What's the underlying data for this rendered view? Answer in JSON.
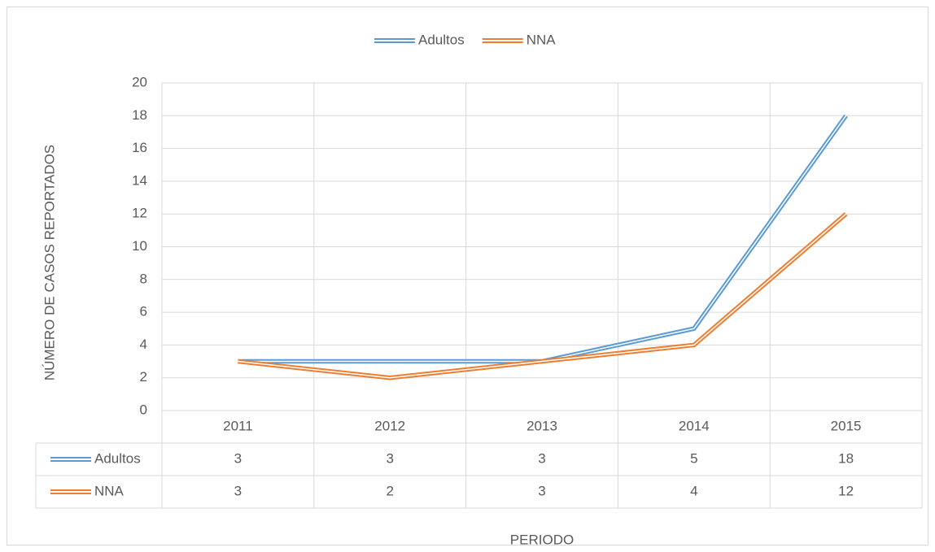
{
  "chart_data": {
    "type": "line",
    "categories": [
      "2011",
      "2012",
      "2013",
      "2014",
      "2015"
    ],
    "series": [
      {
        "name": "Adultos",
        "color": "#5b9bd5",
        "values": [
          3,
          3,
          3,
          5,
          18
        ]
      },
      {
        "name": "NNA",
        "color": "#ed7d31",
        "values": [
          3,
          2,
          3,
          4,
          12
        ]
      }
    ],
    "ylabel": "NÚMERO DE CASOS REPORTADOS",
    "xlabel": "PERIODO",
    "ylim": [
      0,
      20
    ],
    "yticks": [
      0,
      2,
      4,
      6,
      8,
      10,
      12,
      14,
      16,
      18,
      20
    ],
    "grid": true,
    "legend": "top",
    "data_table": true
  }
}
